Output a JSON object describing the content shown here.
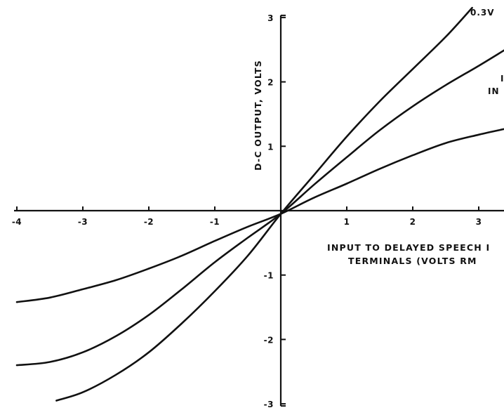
{
  "chart_data": {
    "type": "line",
    "title": "",
    "xlabel_lines": [
      "INPUT TO DELAYED SPEECH I",
      "TERMINALS  (VOLTS RM"
    ],
    "ylabel": "D-C OUTPUT, VOLTS",
    "xlim": [
      -4,
      3.4
    ],
    "ylim": [
      -3,
      3
    ],
    "x_ticks": [
      -4,
      -3,
      -2,
      -1,
      1,
      2,
      3
    ],
    "x_tick_labels": [
      "-4",
      "-3",
      "-2",
      "-1",
      "1",
      "2",
      "3"
    ],
    "y_ticks": [
      -3,
      -2,
      -1,
      1,
      2,
      3
    ],
    "y_tick_labels": [
      "-3",
      "-2",
      "-1",
      "1",
      "2",
      "3"
    ],
    "grid": false,
    "legend": "none",
    "annotations": [
      "0.3V",
      "I",
      "IN"
    ],
    "series": [
      {
        "name": "0.3V",
        "x": [
          -3.4,
          -3.0,
          -2.5,
          -2.0,
          -1.5,
          -1.0,
          -0.5,
          0.0,
          0.5,
          1.0,
          1.5,
          2.0,
          2.5,
          2.9
        ],
        "y": [
          -2.95,
          -2.82,
          -2.55,
          -2.2,
          -1.75,
          -1.25,
          -0.7,
          -0.05,
          0.55,
          1.15,
          1.7,
          2.2,
          2.7,
          3.15
        ]
      },
      {
        "x": [
          -4.0,
          -3.5,
          -3.0,
          -2.5,
          -2.0,
          -1.5,
          -1.0,
          -0.5,
          0.0,
          0.5,
          1.0,
          1.5,
          2.0,
          2.5,
          3.0,
          3.4
        ],
        "y": [
          -2.4,
          -2.35,
          -2.2,
          -1.95,
          -1.62,
          -1.22,
          -0.8,
          -0.42,
          -0.05,
          0.4,
          0.83,
          1.25,
          1.62,
          1.95,
          2.25,
          2.5
        ]
      },
      {
        "x": [
          -4.0,
          -3.5,
          -3.0,
          -2.5,
          -2.0,
          -1.5,
          -1.0,
          -0.5,
          0.0,
          0.5,
          1.0,
          1.5,
          2.0,
          2.5,
          3.0,
          3.4
        ],
        "y": [
          -1.42,
          -1.35,
          -1.22,
          -1.08,
          -0.9,
          -0.7,
          -0.47,
          -0.25,
          -0.05,
          0.2,
          0.42,
          0.65,
          0.86,
          1.05,
          1.18,
          1.27
        ]
      }
    ]
  }
}
